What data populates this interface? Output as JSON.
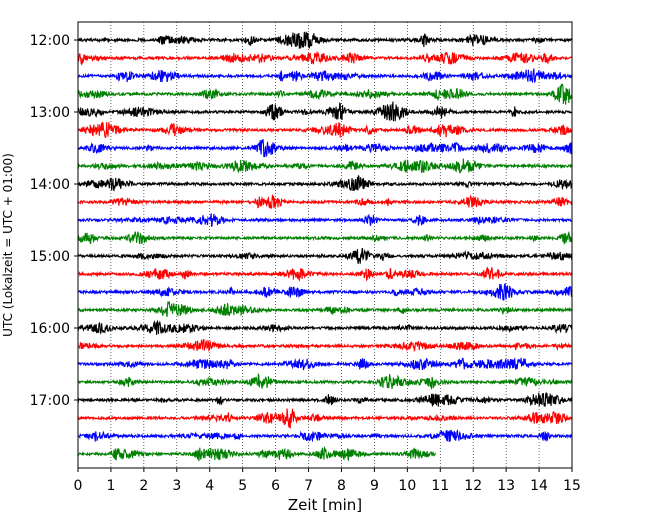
{
  "chart_data": {
    "type": "line",
    "title": "",
    "xlabel": "Zeit  [min]",
    "ylabel": "UTC (Lokalzeit = UTC + 01:00)",
    "xlim": [
      0,
      15
    ],
    "x_ticks": [
      "0",
      "1",
      "2",
      "3",
      "4",
      "5",
      "6",
      "7",
      "8",
      "9",
      "10",
      "11",
      "12",
      "13",
      "14",
      "15"
    ],
    "y_ticks": [
      "12:00",
      "13:00",
      "14:00",
      "15:00",
      "16:00",
      "17:00"
    ],
    "grid": "vertical-dotted",
    "colors": [
      "#000000",
      "#ff0000",
      "#0000ff",
      "#008000"
    ],
    "series": [
      {
        "start_utc": "12:00",
        "color": "#000000",
        "end_min": 15
      },
      {
        "start_utc": "12:15",
        "color": "#ff0000",
        "end_min": 15
      },
      {
        "start_utc": "12:30",
        "color": "#0000ff",
        "end_min": 15
      },
      {
        "start_utc": "12:45",
        "color": "#008000",
        "end_min": 15
      },
      {
        "start_utc": "13:00",
        "color": "#000000",
        "end_min": 15
      },
      {
        "start_utc": "13:15",
        "color": "#ff0000",
        "end_min": 15
      },
      {
        "start_utc": "13:30",
        "color": "#0000ff",
        "end_min": 15
      },
      {
        "start_utc": "13:45",
        "color": "#008000",
        "end_min": 15
      },
      {
        "start_utc": "14:00",
        "color": "#000000",
        "end_min": 15
      },
      {
        "start_utc": "14:15",
        "color": "#ff0000",
        "end_min": 15
      },
      {
        "start_utc": "14:30",
        "color": "#0000ff",
        "end_min": 15
      },
      {
        "start_utc": "14:45",
        "color": "#008000",
        "end_min": 15
      },
      {
        "start_utc": "15:00",
        "color": "#000000",
        "end_min": 15
      },
      {
        "start_utc": "15:15",
        "color": "#ff0000",
        "end_min": 15
      },
      {
        "start_utc": "15:30",
        "color": "#0000ff",
        "end_min": 15
      },
      {
        "start_utc": "15:45",
        "color": "#008000",
        "end_min": 15
      },
      {
        "start_utc": "16:00",
        "color": "#000000",
        "end_min": 15
      },
      {
        "start_utc": "16:15",
        "color": "#ff0000",
        "end_min": 15
      },
      {
        "start_utc": "16:30",
        "color": "#0000ff",
        "end_min": 15
      },
      {
        "start_utc": "16:45",
        "color": "#008000",
        "end_min": 15
      },
      {
        "start_utc": "17:00",
        "color": "#000000",
        "end_min": 15
      },
      {
        "start_utc": "17:15",
        "color": "#ff0000",
        "end_min": 15
      },
      {
        "start_utc": "17:30",
        "color": "#0000ff",
        "end_min": 15
      },
      {
        "start_utc": "17:45",
        "color": "#008000",
        "end_min": 10.85
      }
    ]
  }
}
